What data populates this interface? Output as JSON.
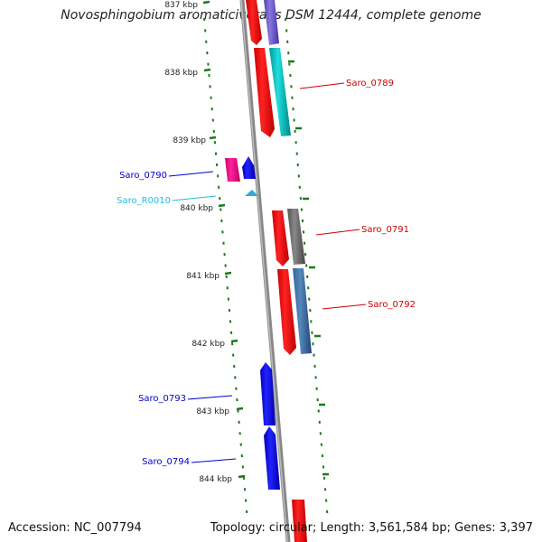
{
  "title": "Novosphingobium aromaticivorans DSM 12444, complete genome",
  "footer": {
    "accession": "Accession: NC_007794",
    "topology": "Topology: circular; Length: 3,561,584 bp; Genes: 3,397"
  },
  "ticks": [
    "837 kbp",
    "838 kbp",
    "839 kbp",
    "840 kbp",
    "841 kbp",
    "842 kbp",
    "843 kbp",
    "844 kbp"
  ],
  "gene_labels": [
    {
      "name": "Saro_0789",
      "color": "#cc0000"
    },
    {
      "name": "Saro_0790",
      "color": "#0000cc"
    },
    {
      "name": "Saro_R0010",
      "color": "#22bbdd"
    },
    {
      "name": "Saro_0791",
      "color": "#cc0000"
    },
    {
      "name": "Saro_0792",
      "color": "#cc0000"
    },
    {
      "name": "Saro_0793",
      "color": "#0000cc"
    },
    {
      "name": "Saro_0794",
      "color": "#0000cc"
    }
  ],
  "colors": {
    "backbone": "#888888",
    "tick": "#1a7a1a",
    "red_gene": "#ee0000",
    "blue_gene": "#0000ee",
    "cyan_gene": "#00bbbb",
    "purple_gene": "#7766cc",
    "gray_gene": "#666666",
    "steel_gene": "#4477aa",
    "pink_gene": "#ee1188",
    "rna": "#33aadd"
  }
}
